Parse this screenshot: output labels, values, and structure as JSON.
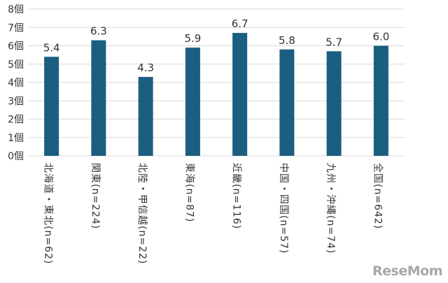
{
  "chart_data": {
    "type": "bar",
    "title": "",
    "xlabel": "",
    "ylabel": "",
    "ylim": [
      0,
      8
    ],
    "yticks": [
      "0個",
      "1個",
      "2個",
      "3個",
      "4個",
      "5個",
      "6個",
      "7個",
      "8個"
    ],
    "grid": true,
    "categories": [
      "北海道・東北(n=62)",
      "関東(n=224)",
      "北陸・甲信越(n=22)",
      "東海(n=87)",
      "近畿(n=116)",
      "中国・四国(n=57)",
      "九州・沖縄(n=74)",
      "全国(n=642)"
    ],
    "values": [
      5.4,
      6.3,
      4.3,
      5.9,
      6.7,
      5.8,
      5.7,
      6.0
    ],
    "value_labels": [
      "5.4",
      "6.3",
      "4.3",
      "5.9",
      "6.7",
      "5.8",
      "5.7",
      "6.0"
    ],
    "bar_color": "#1a5e80"
  },
  "watermark": {
    "text": "ReseMom",
    "color": "#a8a8a8"
  }
}
